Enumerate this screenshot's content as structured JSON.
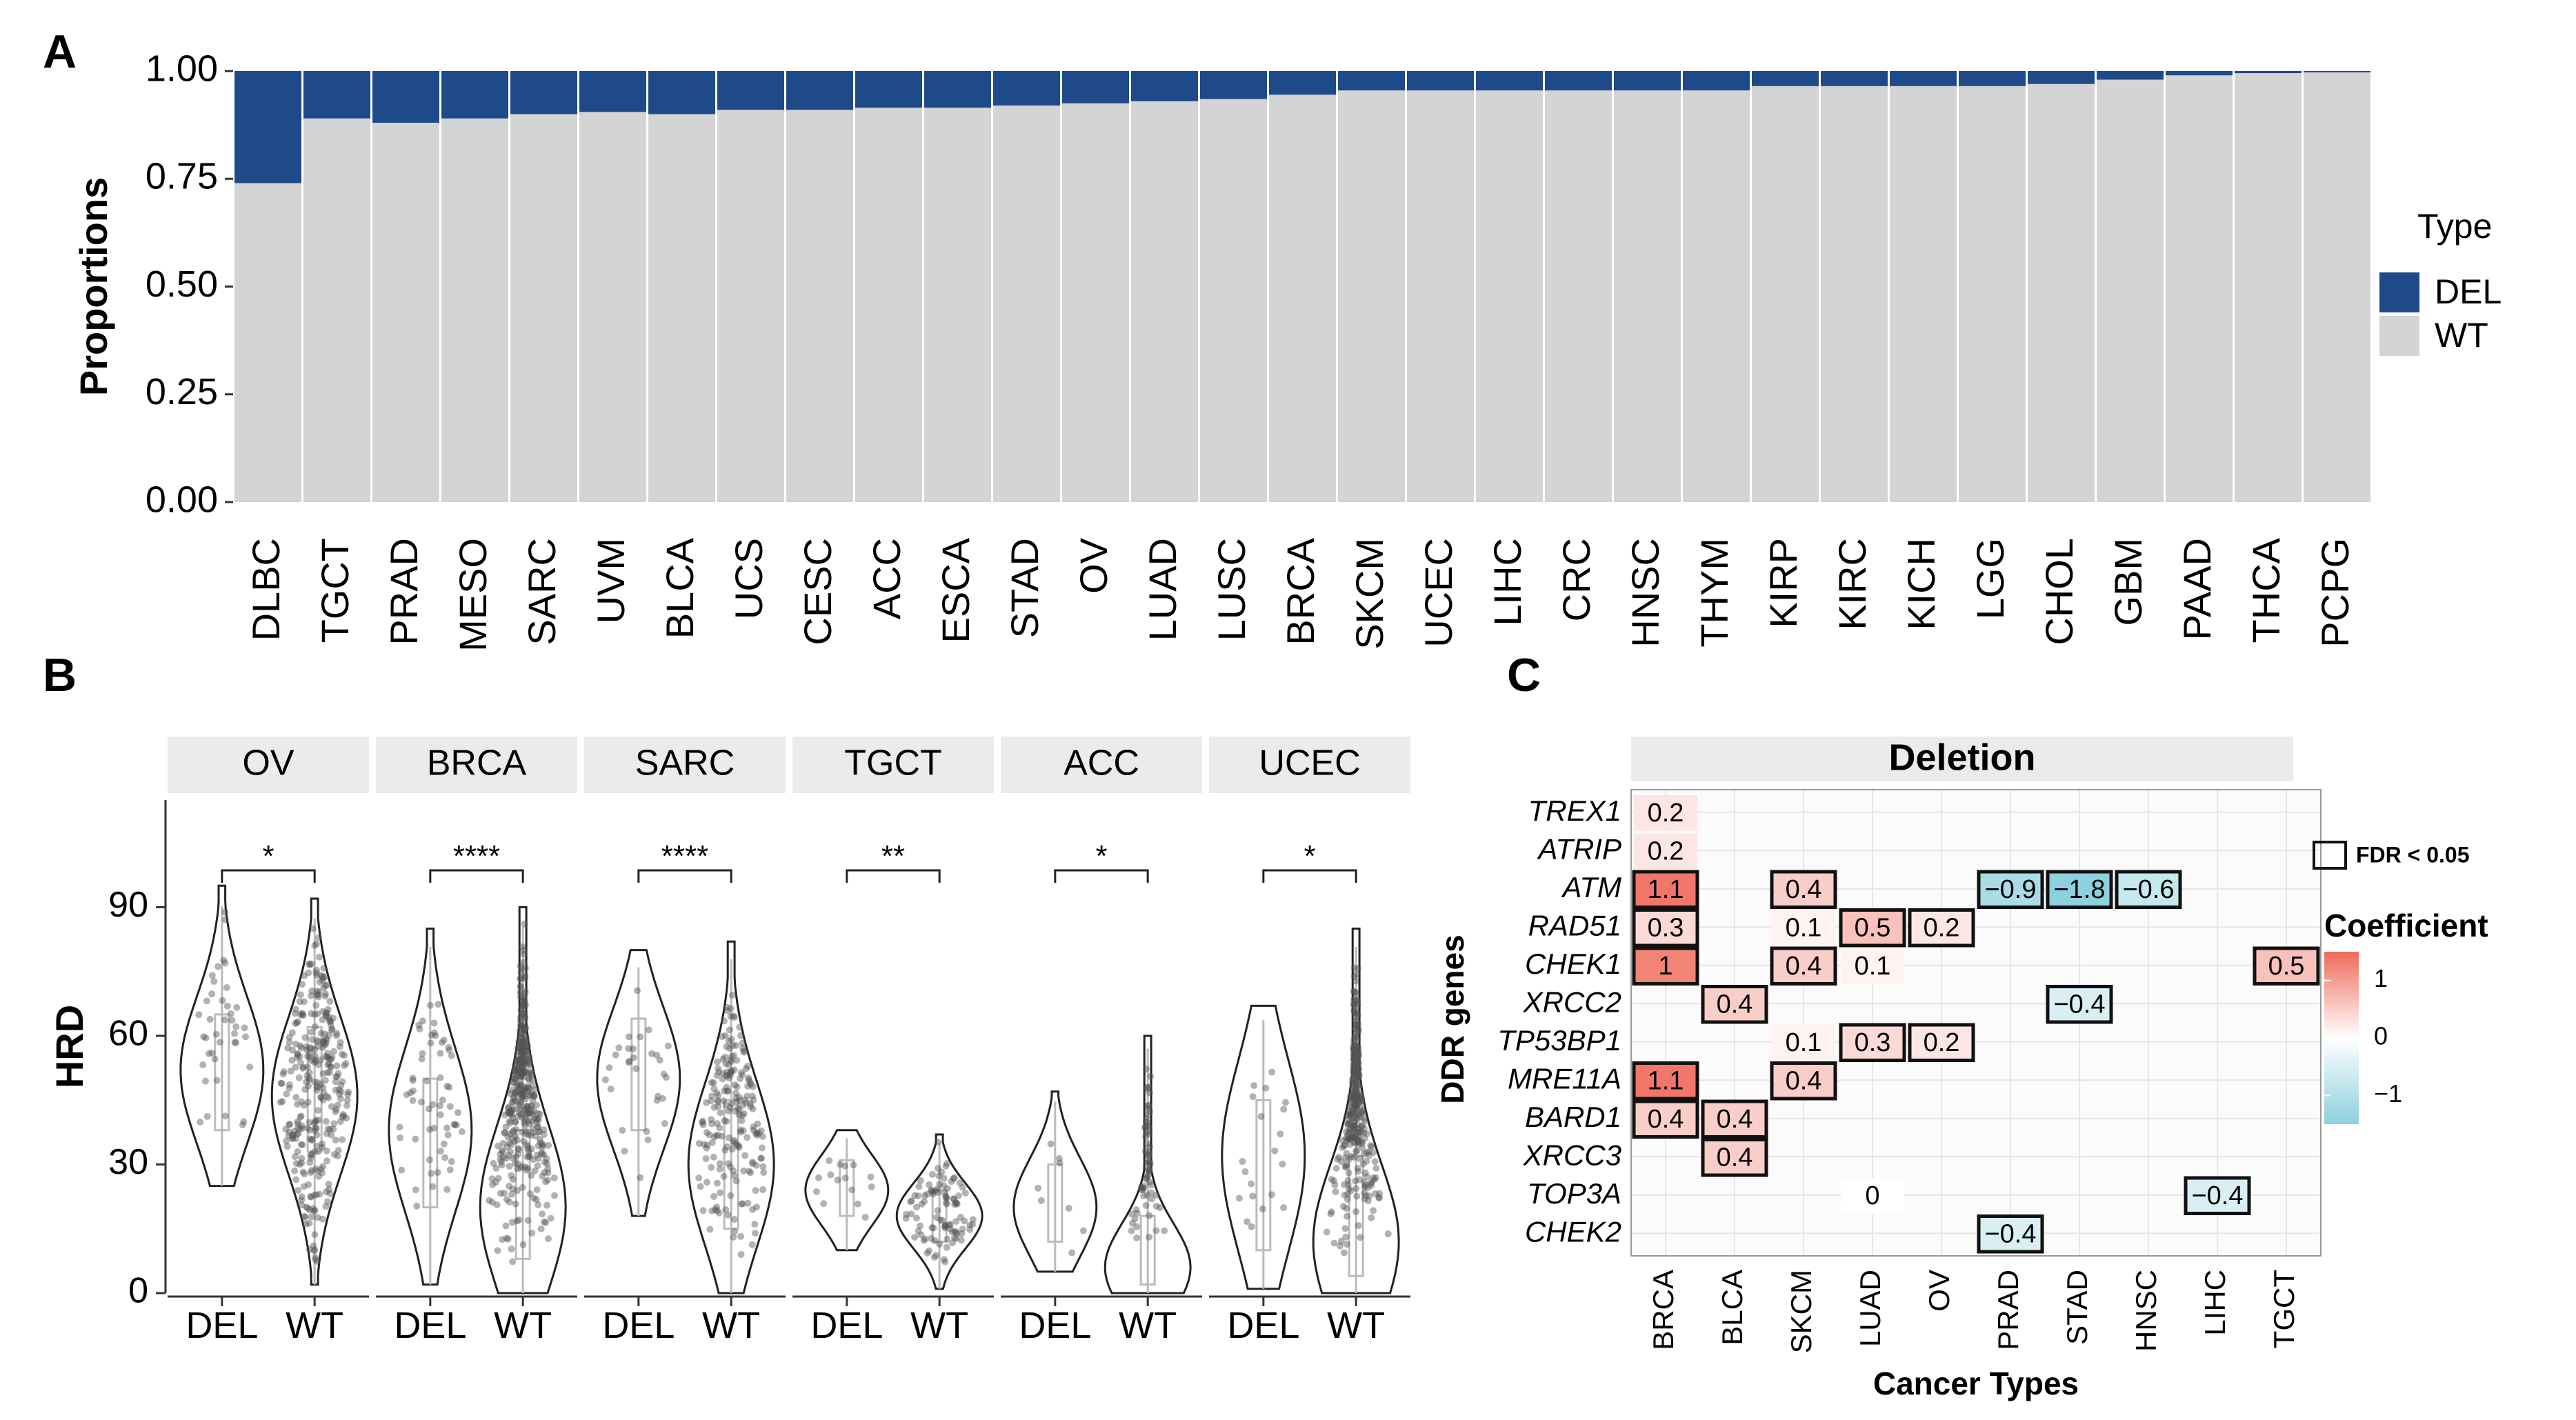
{
  "colors": {
    "del": "#1f4a8a",
    "wt": "#d4d4d4",
    "strip": "#ebebeb",
    "panel_bg": "#fbfbfb",
    "grid": "#e6e6e6",
    "pos": "#ef6b5b",
    "neg": "#8dd0de"
  },
  "panel_a": {
    "letter": "A",
    "chart_data": {
      "type": "bar",
      "stacked": true,
      "title": "",
      "xlabel": "",
      "ylabel": "Proportions",
      "ylim": [
        0,
        1
      ],
      "yticks": [
        "0.00",
        "0.25",
        "0.50",
        "0.75",
        "1.00"
      ],
      "categories": [
        "DLBC",
        "TGCT",
        "PRAD",
        "MESO",
        "SARC",
        "UVM",
        "BLCA",
        "UCS",
        "CESC",
        "ACC",
        "ESCA",
        "STAD",
        "OV",
        "LUAD",
        "LUSC",
        "BRCA",
        "SKCM",
        "UCEC",
        "LIHC",
        "CRC",
        "HNSC",
        "THYM",
        "KIRP",
        "KIRC",
        "KICH",
        "LGG",
        "CHOL",
        "GBM",
        "PAAD",
        "THCA",
        "PCPG"
      ],
      "series": [
        {
          "name": "DEL",
          "values": [
            0.26,
            0.11,
            0.12,
            0.11,
            0.1,
            0.095,
            0.1,
            0.09,
            0.09,
            0.085,
            0.085,
            0.08,
            0.075,
            0.07,
            0.065,
            0.055,
            0.045,
            0.045,
            0.045,
            0.045,
            0.045,
            0.045,
            0.035,
            0.035,
            0.035,
            0.035,
            0.03,
            0.02,
            0.01,
            0.005,
            0.003
          ]
        },
        {
          "name": "WT",
          "values": [
            0.74,
            0.89,
            0.88,
            0.89,
            0.9,
            0.905,
            0.9,
            0.91,
            0.91,
            0.915,
            0.915,
            0.92,
            0.925,
            0.93,
            0.935,
            0.945,
            0.955,
            0.955,
            0.955,
            0.955,
            0.955,
            0.955,
            0.965,
            0.965,
            0.965,
            0.965,
            0.97,
            0.98,
            0.99,
            0.995,
            0.997
          ]
        }
      ],
      "legend": {
        "title": "Type",
        "placement": "right",
        "entries": [
          "DEL",
          "WT"
        ]
      }
    }
  },
  "panel_b": {
    "letter": "B",
    "chart_data": {
      "type": "violin",
      "ylabel": "HRD",
      "ylim": [
        0,
        115
      ],
      "yticks": [
        "0",
        "30",
        "60",
        "90"
      ],
      "groups": [
        "DEL",
        "WT"
      ],
      "facets": [
        {
          "name": "OV",
          "sig": "*",
          "del": {
            "min": 25,
            "max": 95,
            "q1": 38,
            "median": 52,
            "q3": 65,
            "n": 40
          },
          "wt": {
            "min": 2,
            "max": 92,
            "q1": 33,
            "median": 46,
            "q3": 62,
            "n": 320
          }
        },
        {
          "name": "BRCA",
          "sig": "****",
          "del": {
            "min": 2,
            "max": 85,
            "q1": 20,
            "median": 38,
            "q3": 50,
            "n": 60
          },
          "wt": {
            "min": 0,
            "max": 90,
            "q1": 8,
            "median": 20,
            "q3": 38,
            "n": 900
          }
        },
        {
          "name": "SARC",
          "sig": "****",
          "del": {
            "min": 18,
            "max": 80,
            "q1": 38,
            "median": 50,
            "q3": 64,
            "n": 30
          },
          "wt": {
            "min": 0,
            "max": 82,
            "q1": 15,
            "median": 30,
            "q3": 45,
            "n": 200
          }
        },
        {
          "name": "TGCT",
          "sig": "**",
          "del": {
            "min": 10,
            "max": 38,
            "q1": 18,
            "median": 24,
            "q3": 31,
            "n": 15
          },
          "wt": {
            "min": 1,
            "max": 37,
            "q1": 12,
            "median": 18,
            "q3": 24,
            "n": 100
          }
        },
        {
          "name": "ACC",
          "sig": "*",
          "del": {
            "min": 5,
            "max": 47,
            "q1": 12,
            "median": 20,
            "q3": 30,
            "n": 8
          },
          "wt": {
            "min": 0,
            "max": 60,
            "q1": 2,
            "median": 6,
            "q3": 18,
            "n": 70
          }
        },
        {
          "name": "UCEC",
          "sig": "*",
          "del": {
            "min": 1,
            "max": 67,
            "q1": 10,
            "median": 32,
            "q3": 45,
            "n": 20
          },
          "wt": {
            "min": 0,
            "max": 85,
            "q1": 4,
            "median": 12,
            "q3": 32,
            "n": 350
          }
        }
      ]
    }
  },
  "panel_c": {
    "letter": "C",
    "chart_data": {
      "type": "heatmap",
      "title": "Deletion",
      "xlabel": "Cancer Types",
      "ylabel": "DDR genes",
      "columns": [
        "BRCA",
        "BLCA",
        "SKCM",
        "LUAD",
        "OV",
        "PRAD",
        "STAD",
        "HNSC",
        "LIHC",
        "TGCT"
      ],
      "rows": [
        "TREX1",
        "ATRIP",
        "ATM",
        "RAD51",
        "CHEK1",
        "XRCC2",
        "TP53BP1",
        "MRE11A",
        "BARD1",
        "XRCC3",
        "TOP3A",
        "CHEK2"
      ],
      "cells": [
        {
          "row": "TREX1",
          "col": "BRCA",
          "value": 0.2,
          "label": "0.2",
          "sig": false
        },
        {
          "row": "ATRIP",
          "col": "BRCA",
          "value": 0.2,
          "label": "0.2",
          "sig": false
        },
        {
          "row": "ATM",
          "col": "BRCA",
          "value": 1.1,
          "label": "1.1",
          "sig": true
        },
        {
          "row": "ATM",
          "col": "SKCM",
          "value": 0.4,
          "label": "0.4",
          "sig": true
        },
        {
          "row": "ATM",
          "col": "PRAD",
          "value": -0.9,
          "label": "−0.9",
          "sig": true
        },
        {
          "row": "ATM",
          "col": "STAD",
          "value": -1.8,
          "label": "−1.8",
          "sig": true
        },
        {
          "row": "ATM",
          "col": "HNSC",
          "value": -0.6,
          "label": "−0.6",
          "sig": true
        },
        {
          "row": "RAD51",
          "col": "BRCA",
          "value": 0.3,
          "label": "0.3",
          "sig": true
        },
        {
          "row": "RAD51",
          "col": "SKCM",
          "value": 0.1,
          "label": "0.1",
          "sig": false
        },
        {
          "row": "RAD51",
          "col": "LUAD",
          "value": 0.5,
          "label": "0.5",
          "sig": true
        },
        {
          "row": "RAD51",
          "col": "OV",
          "value": 0.2,
          "label": "0.2",
          "sig": true
        },
        {
          "row": "CHEK1",
          "col": "BRCA",
          "value": 1.0,
          "label": "1",
          "sig": true
        },
        {
          "row": "CHEK1",
          "col": "SKCM",
          "value": 0.4,
          "label": "0.4",
          "sig": true
        },
        {
          "row": "CHEK1",
          "col": "LUAD",
          "value": 0.1,
          "label": "0.1",
          "sig": false
        },
        {
          "row": "CHEK1",
          "col": "TGCT",
          "value": 0.5,
          "label": "0.5",
          "sig": true
        },
        {
          "row": "XRCC2",
          "col": "BLCA",
          "value": 0.4,
          "label": "0.4",
          "sig": true
        },
        {
          "row": "XRCC2",
          "col": "STAD",
          "value": -0.4,
          "label": "−0.4",
          "sig": true
        },
        {
          "row": "TP53BP1",
          "col": "SKCM",
          "value": 0.1,
          "label": "0.1",
          "sig": false
        },
        {
          "row": "TP53BP1",
          "col": "LUAD",
          "value": 0.3,
          "label": "0.3",
          "sig": true
        },
        {
          "row": "TP53BP1",
          "col": "OV",
          "value": 0.2,
          "label": "0.2",
          "sig": true
        },
        {
          "row": "MRE11A",
          "col": "BRCA",
          "value": 1.1,
          "label": "1.1",
          "sig": true
        },
        {
          "row": "MRE11A",
          "col": "SKCM",
          "value": 0.4,
          "label": "0.4",
          "sig": true
        },
        {
          "row": "BARD1",
          "col": "BRCA",
          "value": 0.4,
          "label": "0.4",
          "sig": true
        },
        {
          "row": "BARD1",
          "col": "BLCA",
          "value": 0.4,
          "label": "0.4",
          "sig": true
        },
        {
          "row": "XRCC3",
          "col": "BLCA",
          "value": 0.4,
          "label": "0.4",
          "sig": true
        },
        {
          "row": "TOP3A",
          "col": "LUAD",
          "value": 0.0,
          "label": "0",
          "sig": false
        },
        {
          "row": "TOP3A",
          "col": "LIHC",
          "value": -0.4,
          "label": "−0.4",
          "sig": true
        },
        {
          "row": "CHEK2",
          "col": "PRAD",
          "value": -0.4,
          "label": "−0.4",
          "sig": true
        }
      ],
      "legend": {
        "fdr_label": "FDR < 0.05",
        "title": "Coefficient",
        "ticks": [
          "1",
          "0",
          "−1"
        ],
        "range": [
          -1.5,
          1.5
        ]
      }
    }
  }
}
